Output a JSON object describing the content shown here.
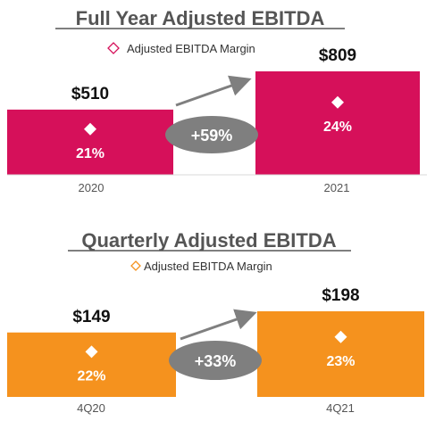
{
  "chart_data": [
    {
      "type": "bar",
      "title": "Full Year Adjusted EBITDA",
      "legend": "Adjusted EBITDA Margin",
      "categories": [
        "2020",
        "2021"
      ],
      "values": [
        510,
        809
      ],
      "value_labels": [
        "$510",
        "$809"
      ],
      "margins": [
        "21%",
        "24%"
      ],
      "growth": "+59%",
      "color": "#d6105a"
    },
    {
      "type": "bar",
      "title": "Quarterly Adjusted EBITDA",
      "legend": "Adjusted EBITDA Margin",
      "categories": [
        "4Q20",
        "4Q21"
      ],
      "values": [
        149,
        198
      ],
      "value_labels": [
        "$149",
        "$198"
      ],
      "margins": [
        "22%",
        "23%"
      ],
      "growth": "+33%",
      "color": "#f5921e"
    }
  ]
}
